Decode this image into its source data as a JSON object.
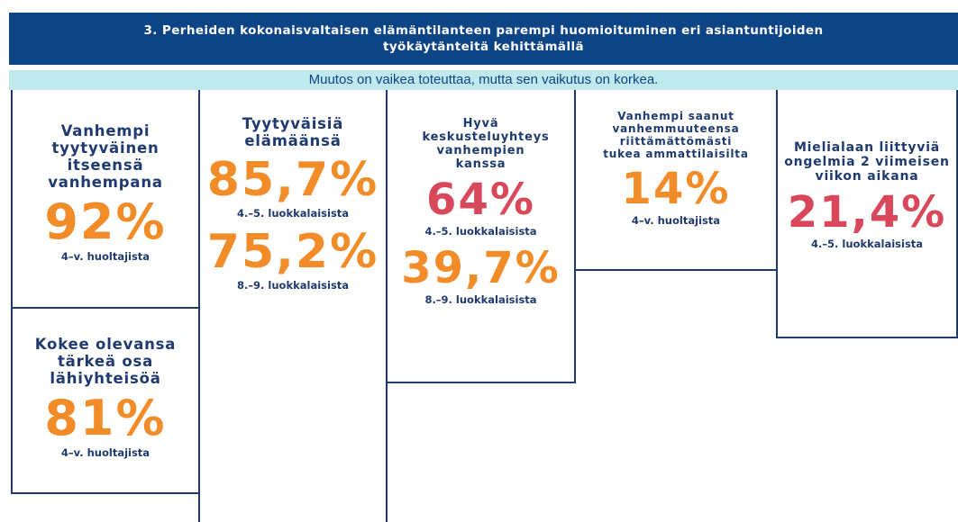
{
  "header": {
    "title": "3. Perheiden kokonaisvaltaisen elämäntilanteen parempi huomioituminen eri asiantuntijoiden työkäytänteitä kehittämällä",
    "subtitle": "Muutos on vaikea toteuttaa, mutta sen vaikutus on korkea."
  },
  "cards": [
    {
      "title": "Vanhempi tyytyväinen itseensä vanhempana",
      "stats": [
        {
          "value": "92%",
          "label": "4–v. huoltajista",
          "color": "#f28c28"
        }
      ]
    },
    {
      "title": "Kokee olevansa tärkeä osa lähiyhteisöä",
      "stats": [
        {
          "value": "81%",
          "label": "4–v. huoltajista",
          "color": "#f28c28"
        }
      ]
    },
    {
      "title": "Tyytyväisiä elämäänsä",
      "stats": [
        {
          "value": "85,7%",
          "label": "4.–5. luokkalaisista",
          "color": "#f28c28"
        },
        {
          "value": "75,2%",
          "label": "8.–9. luokkalaisista",
          "color": "#f28c28"
        }
      ]
    },
    {
      "title": "Hyvä keskusteluyhteys vanhempien kanssa",
      "stats": [
        {
          "value": "64%",
          "label": "4.–5. luokkalaisista",
          "color": "#d9475a"
        },
        {
          "value": "39,7%",
          "label": "8.–9. luokkalaisista",
          "color": "#f28c28"
        }
      ]
    },
    {
      "title": "Vanhempi saanut vanhemmuuteensa riittämättömästi tukea ammattilaisilta",
      "stats": [
        {
          "value": "14%",
          "label": "4–v. huoltajista",
          "color": "#f28c28"
        }
      ]
    },
    {
      "title": "Mielialaan liittyviä ongelmia 2 viimeisen viikon aikana",
      "stats": [
        {
          "value": "21,4%",
          "label": "4.–5. luokkalaisista",
          "color": "#d9475a"
        }
      ]
    }
  ]
}
